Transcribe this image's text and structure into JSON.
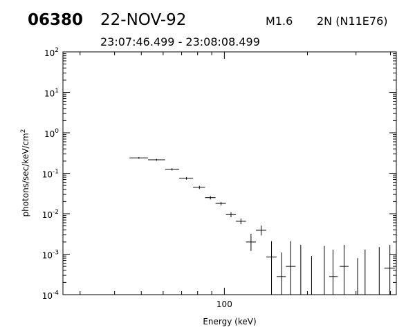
{
  "header": {
    "event_id": "06380",
    "date": "22-NOV-92",
    "flare_class": "M1.6",
    "optical": "2N (N11E76)",
    "time_range": "23:07:46.499 - 23:08:08.499"
  },
  "chart_data": {
    "type": "scatter",
    "title": "",
    "xlabel": "Energy (keV)",
    "ylabel": "photons/sec/keV/cm^2",
    "x_scale": "log",
    "y_scale": "log",
    "xlim": [
      26,
      420
    ],
    "ylim": [
      0.0001,
      100
    ],
    "x_major_ticks": [
      {
        "value": 100,
        "label": "100"
      }
    ],
    "y_major_ticks": [
      {
        "value": 0.0001,
        "label_base": "10",
        "label_exp": "-4"
      },
      {
        "value": 0.001,
        "label_base": "10",
        "label_exp": "-3"
      },
      {
        "value": 0.01,
        "label_base": "10",
        "label_exp": "-2"
      },
      {
        "value": 0.1,
        "label_base": "10",
        "label_exp": "-1"
      },
      {
        "value": 1,
        "label_base": "10",
        "label_exp": "0"
      },
      {
        "value": 10,
        "label_base": "10",
        "label_exp": "1"
      },
      {
        "value": 100,
        "label_base": "10",
        "label_exp": "2"
      }
    ],
    "grid": false,
    "series": [
      {
        "marker": "cross-errorbar",
        "points": [
          {
            "x": 49.0,
            "xlo": 45.3,
            "xhi": 52.9,
            "y": 0.24,
            "ylo": 0.228,
            "yhi": 0.252
          },
          {
            "x": 56.8,
            "xlo": 52.9,
            "xhi": 61.0,
            "y": 0.215,
            "ylo": 0.204,
            "yhi": 0.226
          },
          {
            "x": 64.6,
            "xlo": 61.0,
            "xhi": 68.6,
            "y": 0.125,
            "ylo": 0.117,
            "yhi": 0.133
          },
          {
            "x": 72.9,
            "xlo": 68.6,
            "xhi": 77.0,
            "y": 0.075,
            "ylo": 0.069,
            "yhi": 0.081
          },
          {
            "x": 81.2,
            "xlo": 77.0,
            "xhi": 85.1,
            "y": 0.045,
            "ylo": 0.041,
            "yhi": 0.049
          },
          {
            "x": 89.0,
            "xlo": 85.1,
            "xhi": 92.9,
            "y": 0.025,
            "ylo": 0.0225,
            "yhi": 0.0275
          },
          {
            "x": 97.3,
            "xlo": 92.9,
            "xhi": 101.3,
            "y": 0.018,
            "ylo": 0.016,
            "yhi": 0.0195
          },
          {
            "x": 105.7,
            "xlo": 101.3,
            "xhi": 110.1,
            "y": 0.0095,
            "ylo": 0.0082,
            "yhi": 0.0108
          },
          {
            "x": 114.8,
            "xlo": 110.1,
            "xhi": 119.8,
            "y": 0.0065,
            "ylo": 0.0055,
            "yhi": 0.0076
          },
          {
            "x": 124.9,
            "xlo": 119.8,
            "xhi": 130.1,
            "y": 0.002,
            "ylo": 0.0012,
            "yhi": 0.0032
          },
          {
            "x": 136.0,
            "xlo": 130.1,
            "xhi": 141.9,
            "y": 0.0039,
            "ylo": 0.0029,
            "yhi": 0.0051
          },
          {
            "x": 148.2,
            "xlo": 141.9,
            "xhi": 154.7,
            "y": 0.00085,
            "ylo": 0.0001,
            "yhi": 0.0021
          },
          {
            "x": 161.3,
            "xlo": 154.7,
            "xhi": 167.0,
            "y": 0.00028,
            "ylo": 0.0001,
            "yhi": 0.0011
          },
          {
            "x": 174.0,
            "xlo": 167.0,
            "xhi": 181.3,
            "y": 0.0005,
            "ylo": 0.0001,
            "yhi": 0.0021
          },
          {
            "x": 189.2,
            "xlo": 189.2,
            "xhi": 189.2,
            "y": 0.0001,
            "ylo": 0.0001,
            "yhi": 0.0017
          },
          {
            "x": 207.0,
            "xlo": 207.0,
            "xhi": 207.0,
            "y": 0.0001,
            "ylo": 0.0001,
            "yhi": 0.0009
          },
          {
            "x": 230.3,
            "xlo": 230.3,
            "xhi": 230.3,
            "y": 0.0001,
            "ylo": 0.0001,
            "yhi": 0.0016
          },
          {
            "x": 247.6,
            "xlo": 240.0,
            "xhi": 257.6,
            "y": 0.00028,
            "ylo": 0.0001,
            "yhi": 0.0013
          },
          {
            "x": 271.6,
            "xlo": 262.0,
            "xhi": 282.1,
            "y": 0.0005,
            "ylo": 0.0001,
            "yhi": 0.0017
          },
          {
            "x": 304.0,
            "xlo": 304.0,
            "xhi": 304.0,
            "y": 0.0001,
            "ylo": 0.0001,
            "yhi": 0.0008
          },
          {
            "x": 323.6,
            "xlo": 323.6,
            "xhi": 323.6,
            "y": 0.0001,
            "ylo": 0.0001,
            "yhi": 0.0013
          },
          {
            "x": 364.2,
            "xlo": 364.2,
            "xhi": 364.2,
            "y": 0.0001,
            "ylo": 0.0001,
            "yhi": 0.0015
          },
          {
            "x": 398.0,
            "xlo": 380.0,
            "xhi": 415.0,
            "y": 0.00045,
            "ylo": 0.0001,
            "yhi": 0.0017
          }
        ]
      }
    ]
  }
}
